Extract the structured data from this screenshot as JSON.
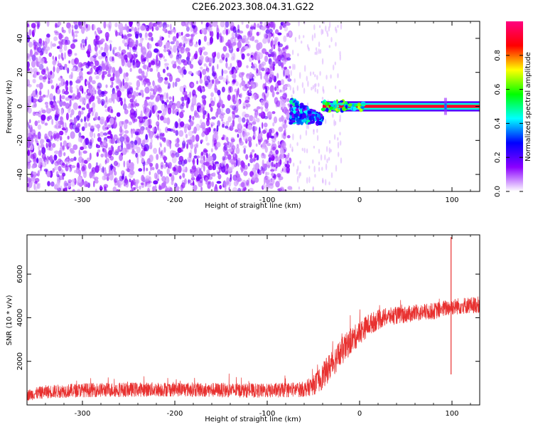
{
  "title": "C2E6.2023.308.04.31.G22",
  "chart_data": [
    {
      "type": "heatmap",
      "title": "C2E6.2023.308.04.31.G22",
      "xlabel": "Height of straight line (km)",
      "ylabel": "Frequency (Hz)",
      "xlim": [
        -360,
        130
      ],
      "ylim": [
        -50,
        50
      ],
      "xticks": [
        -300,
        -200,
        -100,
        0,
        100
      ],
      "yticks": [
        -40,
        -20,
        0,
        20,
        40
      ],
      "grid": false,
      "colorbar": {
        "label": "Normalized spectral amplitude",
        "range": [
          0,
          1
        ],
        "ticks": [
          0.0,
          0.2,
          0.4,
          0.6,
          0.8
        ],
        "colormap": [
          "#ffffff",
          "#8b00ff",
          "#0000ff",
          "#00ffff",
          "#00ff00",
          "#ffff00",
          "#ff0000",
          "#ff0080"
        ]
      },
      "regions": [
        {
          "x_range": [
            -360,
            -75
          ],
          "freq_range": [
            -50,
            50
          ],
          "amplitude": 0.05,
          "pattern": "broadband noise"
        },
        {
          "x_range": [
            -75,
            -40
          ],
          "freq_range": [
            -10,
            5
          ],
          "amplitude": 0.25,
          "pattern": "transition"
        },
        {
          "x_range": [
            -40,
            130
          ],
          "freq_center": 0,
          "freq_width": 3,
          "amplitude": 0.9,
          "pattern": "narrow carrier line"
        }
      ],
      "markers": [
        {
          "x": 93,
          "freq": 0,
          "note": "isolated spike"
        }
      ]
    },
    {
      "type": "line",
      "xlabel": "Height of straight line (km)",
      "ylabel": "SNR (10 * v/v)",
      "xlim": [
        -360,
        130
      ],
      "ylim": [
        0,
        7800
      ],
      "xticks": [
        -300,
        -200,
        -100,
        0,
        100
      ],
      "yticks": [
        2000,
        4000,
        6000
      ],
      "grid": false,
      "color": "#e8302f",
      "series": [
        {
          "x": [
            -360,
            -340,
            -300,
            -250,
            -200,
            -150,
            -100,
            -60,
            -50,
            -40,
            -30,
            -20,
            -10,
            0,
            10,
            20,
            30,
            40,
            60,
            80,
            90,
            100,
            110,
            130
          ],
          "y": [
            450,
            600,
            680,
            700,
            720,
            680,
            650,
            720,
            900,
            1300,
            1900,
            2400,
            2900,
            3300,
            3700,
            3900,
            4050,
            4100,
            4200,
            4300,
            4400,
            4500,
            4550,
            4600
          ],
          "noise": [
            250,
            300,
            320,
            330,
            330,
            330,
            320,
            350,
            450,
            600,
            650,
            650,
            600,
            550,
            500,
            450,
            400,
            400,
            380,
            380,
            380,
            380,
            380,
            380
          ]
        }
      ],
      "spikes": [
        {
          "x": 99,
          "y": 7700
        },
        {
          "x": 99,
          "y": 1400
        }
      ]
    }
  ]
}
